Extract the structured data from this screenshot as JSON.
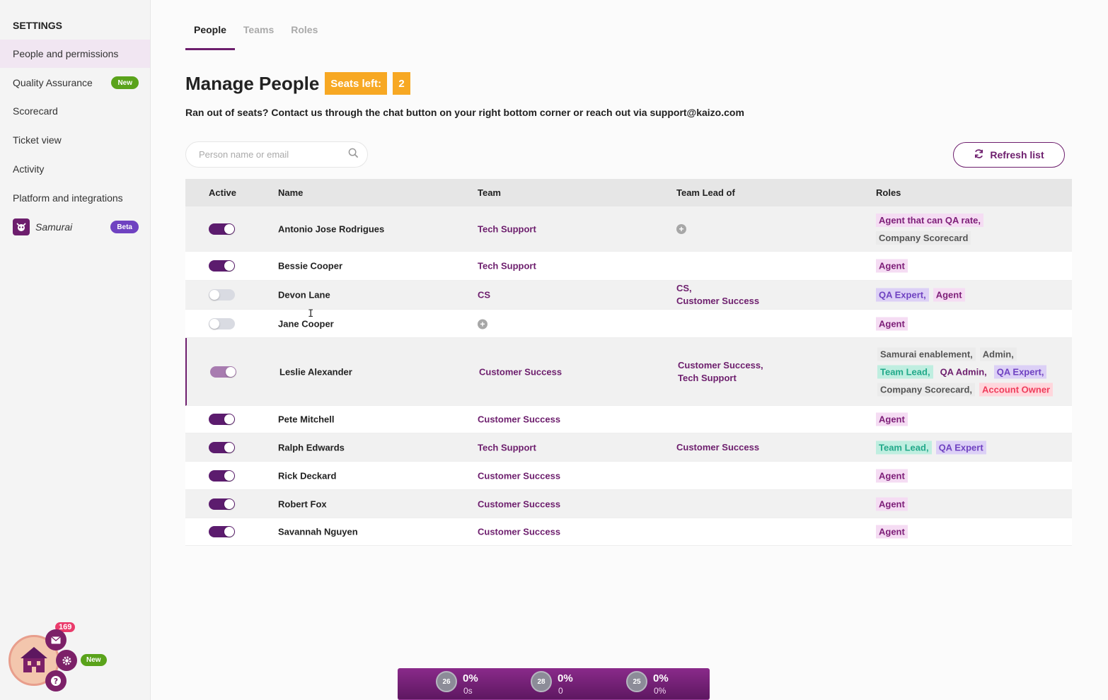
{
  "sidebar": {
    "title": "SETTINGS",
    "items": [
      {
        "label": "People and permissions",
        "active": true
      },
      {
        "label": "Quality Assurance",
        "badge": "New"
      },
      {
        "label": "Scorecard"
      },
      {
        "label": "Ticket view"
      },
      {
        "label": "Activity"
      },
      {
        "label": "Platform and integrations"
      },
      {
        "label": "Samurai",
        "badge": "Beta"
      }
    ]
  },
  "tabs": [
    "People",
    "Teams",
    "Roles"
  ],
  "header": {
    "title": "Manage People",
    "seats_label": "Seats left:",
    "seats_value": "2",
    "subtitle": "Ran out of seats? Contact us through the chat button on your right bottom corner or reach out via support@kaizo.com"
  },
  "search": {
    "placeholder": "Person name or email"
  },
  "refresh_label": "Refresh list",
  "columns": [
    "Active",
    "Name",
    "Team",
    "Team Lead of",
    "Roles"
  ],
  "rows": [
    {
      "active": "on",
      "name": "Antonio Jose Rodrigues",
      "team": "Tech Support",
      "lead_of": [],
      "lead_add": true,
      "roles": [
        {
          "t": "Agent that can QA rate,",
          "c": "pink"
        },
        {
          "t": "Company Scorecard",
          "c": "gray"
        }
      ]
    },
    {
      "active": "on",
      "name": "Bessie Cooper",
      "team": "Tech Support",
      "lead_of": [],
      "roles": [
        {
          "t": "Agent",
          "c": "pink"
        }
      ]
    },
    {
      "active": "off",
      "name": "Devon Lane",
      "team": "CS",
      "lead_of": [
        "CS,",
        "Customer Success"
      ],
      "roles": [
        {
          "t": "QA Expert,",
          "c": "lav"
        },
        {
          "t": "Agent",
          "c": "pink"
        }
      ]
    },
    {
      "active": "off",
      "name": "Jane Cooper",
      "team": "",
      "team_add": true,
      "lead_of": [],
      "roles": [
        {
          "t": "Agent",
          "c": "pink"
        }
      ]
    },
    {
      "active": "dim",
      "name": "Leslie Alexander",
      "team": "Customer Success",
      "lead_of": [
        "Customer Success,",
        "Tech Support"
      ],
      "roles": [
        {
          "t": "Samurai enablement,",
          "c": "gray"
        },
        {
          "t": "Admin,",
          "c": "gray"
        },
        {
          "t": "Team Lead,",
          "c": "teal"
        },
        {
          "t": "QA Admin,",
          "c": "plain"
        },
        {
          "t": "QA Expert,",
          "c": "lav"
        },
        {
          "t": "Company Scorecard,",
          "c": "gray"
        },
        {
          "t": "Account Owner",
          "c": "red"
        }
      ]
    },
    {
      "active": "on",
      "name": "Pete Mitchell",
      "team": "Customer Success",
      "lead_of": [],
      "roles": [
        {
          "t": "Agent",
          "c": "pink"
        }
      ]
    },
    {
      "active": "on",
      "name": "Ralph Edwards",
      "team": "Tech Support",
      "lead_of": [
        "Customer Success"
      ],
      "roles": [
        {
          "t": "Team Lead,",
          "c": "teal"
        },
        {
          "t": "QA Expert",
          "c": "lav"
        }
      ]
    },
    {
      "active": "on",
      "name": "Rick Deckard",
      "team": "Customer Success",
      "lead_of": [],
      "roles": [
        {
          "t": "Agent",
          "c": "pink"
        }
      ]
    },
    {
      "active": "on",
      "name": "Robert Fox",
      "team": "Customer Success",
      "lead_of": [],
      "roles": [
        {
          "t": "Agent",
          "c": "pink"
        }
      ]
    },
    {
      "active": "on",
      "name": "Savannah Nguyen",
      "team": "Customer Success",
      "lead_of": [],
      "roles": [
        {
          "t": "Agent",
          "c": "pink"
        }
      ]
    }
  ],
  "widget": {
    "count": "169",
    "new_label": "New"
  },
  "stats": [
    {
      "level": "26",
      "pct": "0%",
      "sub": "0s"
    },
    {
      "level": "28",
      "pct": "0%",
      "sub": "0"
    },
    {
      "level": "25",
      "pct": "0%",
      "sub": "0%"
    }
  ],
  "colors": {
    "brand": "#6d1e6d",
    "seats": "#f7a823",
    "new_badge": "#5aa31b",
    "beta_badge": "#6f42c1"
  }
}
